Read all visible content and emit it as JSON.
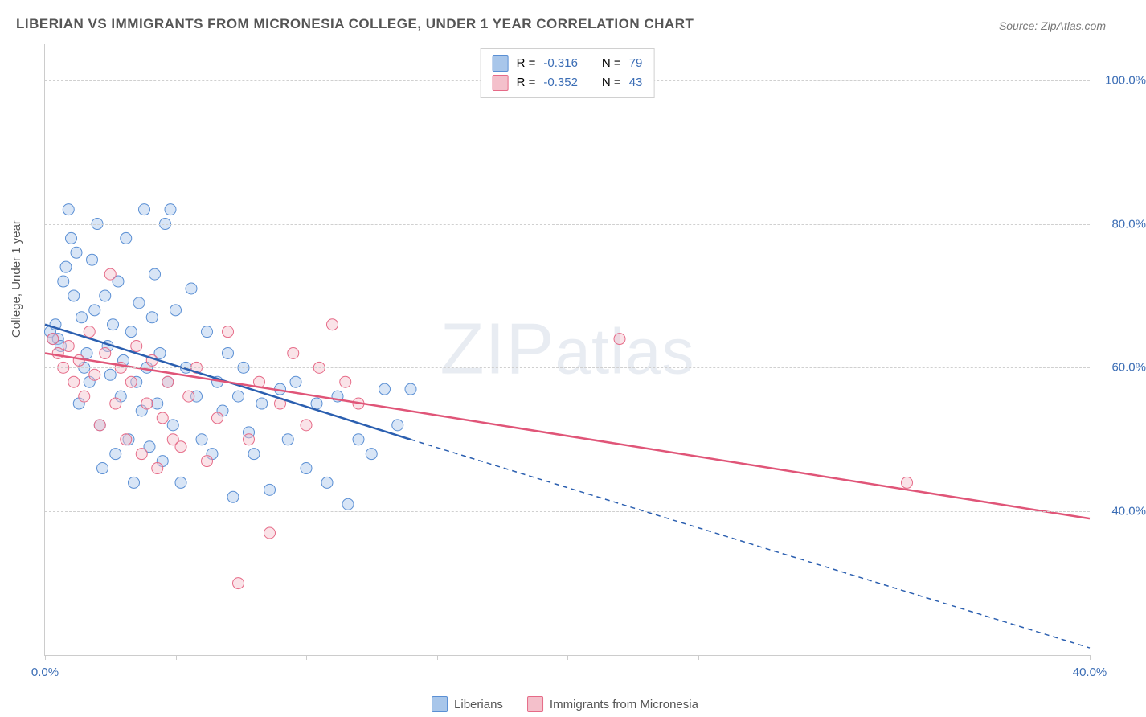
{
  "title": "LIBERIAN VS IMMIGRANTS FROM MICRONESIA COLLEGE, UNDER 1 YEAR CORRELATION CHART",
  "source": "Source: ZipAtlas.com",
  "watermark": "ZIPatlas",
  "ylabel": "College, Under 1 year",
  "chart": {
    "type": "scatter",
    "xlim": [
      0,
      40
    ],
    "ylim": [
      20,
      105
    ],
    "xtick_positions": [
      0,
      5,
      10,
      15,
      20,
      25,
      30,
      35,
      40
    ],
    "xtick_labels": {
      "0": "0.0%",
      "40": "40.0%"
    },
    "ytick_positions": [
      40,
      60,
      80,
      100
    ],
    "ytick_labels": [
      "40.0%",
      "60.0%",
      "80.0%",
      "100.0%"
    ],
    "gridlines_y": [
      22,
      40,
      60,
      80,
      100
    ],
    "background_color": "#ffffff",
    "grid_color": "#d0d0d0",
    "axis_color": "#cccccc",
    "tick_label_color": "#3b6db5",
    "axis_label_color": "#555555",
    "marker_radius": 7,
    "marker_opacity": 0.45,
    "series": [
      {
        "id": "liberians",
        "label": "Liberians",
        "color_fill": "#a8c6ea",
        "color_stroke": "#5a8fd4",
        "line_color": "#2b5fb0",
        "line_width": 2.5,
        "r": "-0.316",
        "n": "79",
        "trend": {
          "x1": 0,
          "y1": 66,
          "x2": 14,
          "y2": 50,
          "dash_x2": 40,
          "dash_y2": 21
        },
        "points": [
          [
            0.2,
            65
          ],
          [
            0.3,
            64
          ],
          [
            0.4,
            66
          ],
          [
            0.5,
            64
          ],
          [
            0.6,
            63
          ],
          [
            0.7,
            72
          ],
          [
            0.8,
            74
          ],
          [
            0.9,
            82
          ],
          [
            1.0,
            78
          ],
          [
            1.1,
            70
          ],
          [
            1.2,
            76
          ],
          [
            1.3,
            55
          ],
          [
            1.4,
            67
          ],
          [
            1.5,
            60
          ],
          [
            1.6,
            62
          ],
          [
            1.7,
            58
          ],
          [
            1.8,
            75
          ],
          [
            1.9,
            68
          ],
          [
            2.0,
            80
          ],
          [
            2.1,
            52
          ],
          [
            2.2,
            46
          ],
          [
            2.3,
            70
          ],
          [
            2.4,
            63
          ],
          [
            2.5,
            59
          ],
          [
            2.6,
            66
          ],
          [
            2.7,
            48
          ],
          [
            2.8,
            72
          ],
          [
            2.9,
            56
          ],
          [
            3.0,
            61
          ],
          [
            3.1,
            78
          ],
          [
            3.2,
            50
          ],
          [
            3.3,
            65
          ],
          [
            3.4,
            44
          ],
          [
            3.5,
            58
          ],
          [
            3.6,
            69
          ],
          [
            3.7,
            54
          ],
          [
            3.8,
            82
          ],
          [
            3.9,
            60
          ],
          [
            4.0,
            49
          ],
          [
            4.1,
            67
          ],
          [
            4.2,
            73
          ],
          [
            4.3,
            55
          ],
          [
            4.4,
            62
          ],
          [
            4.5,
            47
          ],
          [
            4.6,
            80
          ],
          [
            4.7,
            58
          ],
          [
            4.8,
            82
          ],
          [
            4.9,
            52
          ],
          [
            5.0,
            68
          ],
          [
            5.2,
            44
          ],
          [
            5.4,
            60
          ],
          [
            5.6,
            71
          ],
          [
            5.8,
            56
          ],
          [
            6.0,
            50
          ],
          [
            6.2,
            65
          ],
          [
            6.4,
            48
          ],
          [
            6.6,
            58
          ],
          [
            6.8,
            54
          ],
          [
            7.0,
            62
          ],
          [
            7.2,
            42
          ],
          [
            7.4,
            56
          ],
          [
            7.6,
            60
          ],
          [
            7.8,
            51
          ],
          [
            8.0,
            48
          ],
          [
            8.3,
            55
          ],
          [
            8.6,
            43
          ],
          [
            9.0,
            57
          ],
          [
            9.3,
            50
          ],
          [
            9.6,
            58
          ],
          [
            10.0,
            46
          ],
          [
            10.4,
            55
          ],
          [
            10.8,
            44
          ],
          [
            11.2,
            56
          ],
          [
            11.6,
            41
          ],
          [
            12.0,
            50
          ],
          [
            12.5,
            48
          ],
          [
            13.0,
            57
          ],
          [
            13.5,
            52
          ],
          [
            14.0,
            57
          ]
        ]
      },
      {
        "id": "micronesia",
        "label": "Immigrants from Micronesia",
        "color_fill": "#f4c0cb",
        "color_stroke": "#e66a87",
        "line_color": "#e05578",
        "line_width": 2.5,
        "r": "-0.352",
        "n": "43",
        "trend": {
          "x1": 0,
          "y1": 62,
          "x2": 40,
          "y2": 39
        },
        "points": [
          [
            0.3,
            64
          ],
          [
            0.5,
            62
          ],
          [
            0.7,
            60
          ],
          [
            0.9,
            63
          ],
          [
            1.1,
            58
          ],
          [
            1.3,
            61
          ],
          [
            1.5,
            56
          ],
          [
            1.7,
            65
          ],
          [
            1.9,
            59
          ],
          [
            2.1,
            52
          ],
          [
            2.3,
            62
          ],
          [
            2.5,
            73
          ],
          [
            2.7,
            55
          ],
          [
            2.9,
            60
          ],
          [
            3.1,
            50
          ],
          [
            3.3,
            58
          ],
          [
            3.5,
            63
          ],
          [
            3.7,
            48
          ],
          [
            3.9,
            55
          ],
          [
            4.1,
            61
          ],
          [
            4.3,
            46
          ],
          [
            4.5,
            53
          ],
          [
            4.7,
            58
          ],
          [
            4.9,
            50
          ],
          [
            5.2,
            49
          ],
          [
            5.5,
            56
          ],
          [
            5.8,
            60
          ],
          [
            6.2,
            47
          ],
          [
            6.6,
            53
          ],
          [
            7.0,
            65
          ],
          [
            7.4,
            30
          ],
          [
            7.8,
            50
          ],
          [
            8.2,
            58
          ],
          [
            8.6,
            37
          ],
          [
            9.0,
            55
          ],
          [
            9.5,
            62
          ],
          [
            10.0,
            52
          ],
          [
            10.5,
            60
          ],
          [
            11.0,
            66
          ],
          [
            11.5,
            58
          ],
          [
            12.0,
            55
          ],
          [
            22.0,
            64
          ],
          [
            33.0,
            44
          ]
        ]
      }
    ]
  },
  "legend_top": {
    "r_label": "R =",
    "n_label": "N =",
    "value_color": "#3b6db5",
    "text_color": "#555555"
  },
  "legend_bottom_labels": [
    "Liberians",
    "Immigrants from Micronesia"
  ]
}
